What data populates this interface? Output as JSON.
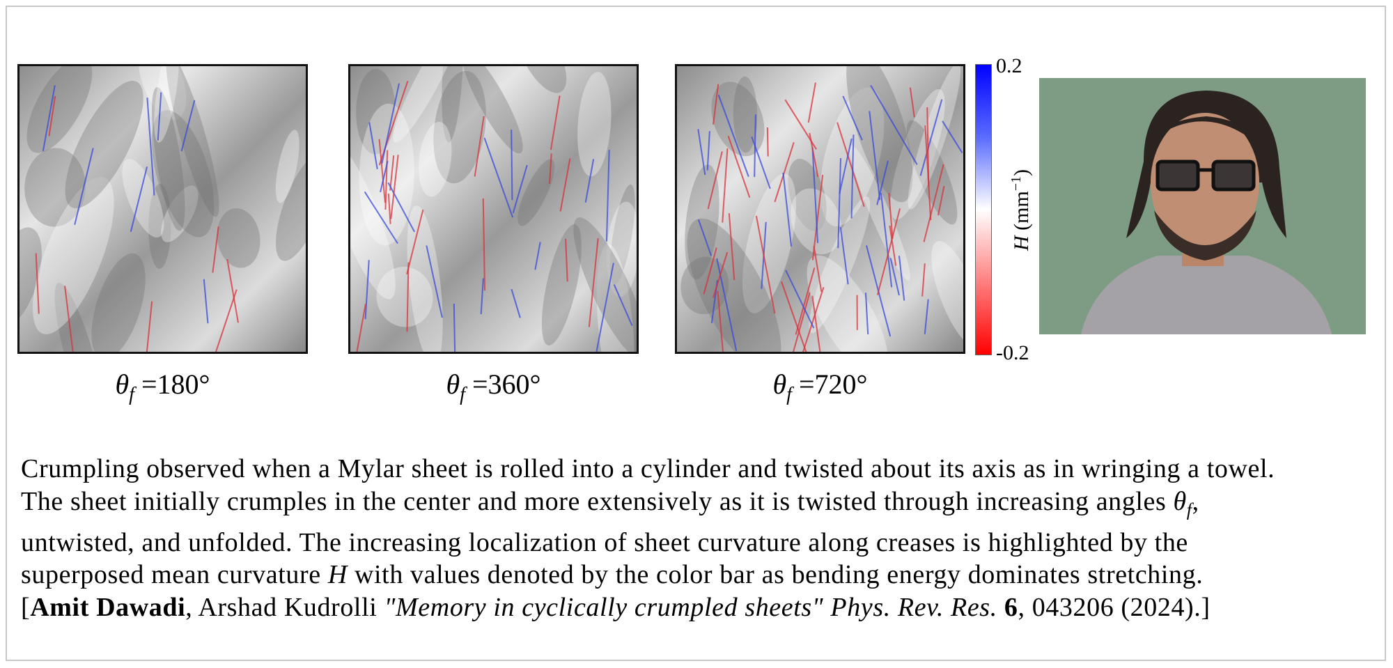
{
  "figure": {
    "panels": [
      {
        "theta_symbol": "θ",
        "subscript": "f",
        "value": " =180°",
        "crease_count": 14
      },
      {
        "theta_symbol": "θ",
        "subscript": "f",
        "value": " =360°",
        "crease_count": 34
      },
      {
        "theta_symbol": "θ",
        "subscript": "f",
        "value": " =720°",
        "crease_count": 60
      }
    ],
    "colorbar": {
      "max_label": "0.2",
      "min_label": "-0.2",
      "title_var": "H",
      "title_unit": " (mm",
      "title_exp": "−1",
      "title_close": ")",
      "colors": [
        "#0000ff",
        "#ffffff",
        "#ff0000"
      ]
    },
    "photo_background": "#7e9c84"
  },
  "caption": {
    "line1": "Crumpling observed when a Mylar sheet is rolled into a cylinder and twisted about its axis as in wringing a towel.",
    "line2": "The sheet initially crumples in the center and more extensively as it is twisted through increasing angles ",
    "line2_theta": "θ",
    "line2_sub": "f",
    "line2_end": ",",
    "line3": "untwisted, and unfolded. The increasing localization of sheet curvature along creases is highlighted by the",
    "line4_a": "superposed mean curvature ",
    "line4_var": "H",
    "line4_b": " with values denoted by the color bar as bending energy dominates stretching.",
    "ref_open": "[",
    "ref_author1": "Amit Dawadi",
    "ref_author2": ", Arshad Kudrolli ",
    "ref_title": "\"Memory in cyclically crumpled sheets\" Phys. Rev. Res.",
    "ref_volume": " 6",
    "ref_rest": ", 043206 (2024).]"
  }
}
